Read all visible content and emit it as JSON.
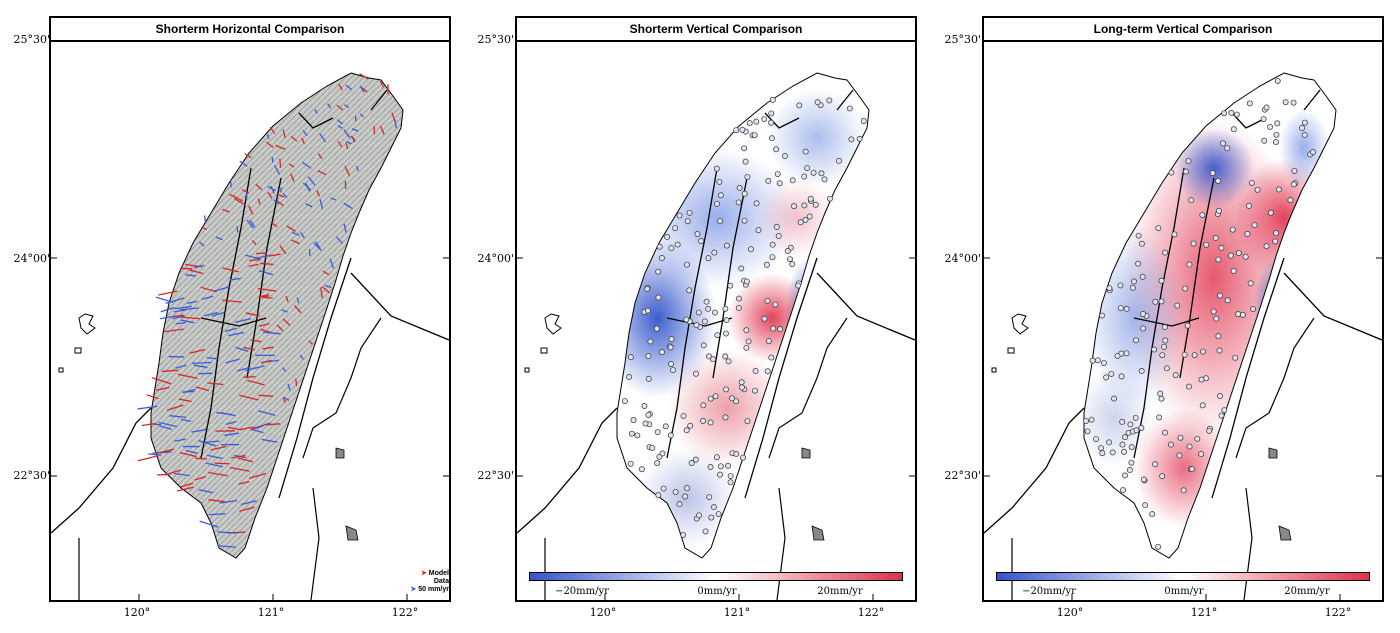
{
  "panels": [
    {
      "title": "Shorterm Horizontal Comparison",
      "type": "vectors"
    },
    {
      "title": "Shorterm Vertical Comparison",
      "type": "vertical-short"
    },
    {
      "title": "Long-term Vertical Comparison",
      "type": "vertical-long"
    }
  ],
  "latitude_labels": [
    "25°30'",
    "24°00'",
    "22°30'"
  ],
  "longitude_labels": [
    "120°",
    "121°",
    "122°"
  ],
  "legend": {
    "model": "Model",
    "data": "Data",
    "scale": "50 mm/yr"
  },
  "colorbar": {
    "min_label": "−20mm/yr",
    "mid_label": "0mm/yr",
    "max_label": "20mm/yr"
  },
  "colors": {
    "model": "#d62728",
    "data": "#3b5bdb",
    "negative": "#3355cc",
    "positive": "#e0304a",
    "land": "#c9ccc9"
  }
}
